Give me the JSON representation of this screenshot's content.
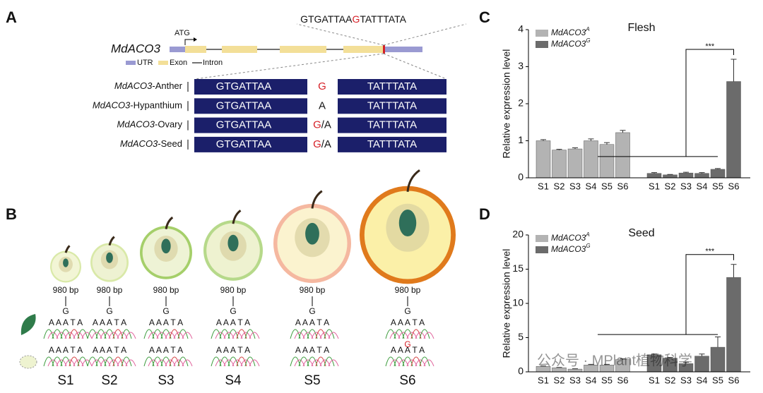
{
  "panels": {
    "labels": [
      "A",
      "B",
      "C",
      "D"
    ],
    "gene": {
      "name": "MdACO3",
      "start": "ATG",
      "sequence": [
        "GTGATTAA",
        "G",
        "TATTTATA"
      ],
      "legend": [
        "UTR",
        "Exon",
        "Intron"
      ]
    },
    "alignment": [
      {
        "label": "MdACO3-Anther",
        "left": "GTGATTAA",
        "allele": "G",
        "right": "TATTTATA"
      },
      {
        "label": "MdACO3-Hypanthium",
        "left": "GTGATTAA",
        "allele": "A",
        "right": "TATTTATA"
      },
      {
        "label": "MdACO3-Ovary",
        "left": "GTGATTAA",
        "allele": "G/A",
        "right": "TATTTATA"
      },
      {
        "label": "MdACO3-Seed",
        "left": "GTGATTAA",
        "allele": "G/A",
        "right": "TATTTATA"
      }
    ],
    "stages": [
      "S1",
      "S2",
      "S3",
      "S4",
      "S5",
      "S6"
    ],
    "amplicon": "980 bp",
    "snp": "G",
    "trace": "A A A T A",
    "watermark": "公众号 · MPlant植物科学"
  },
  "chart_data": [
    {
      "type": "bar",
      "title": "Flesh",
      "y_label": "Relative expression level",
      "categories": [
        "S1",
        "S2",
        "S3",
        "S4",
        "S5",
        "S6"
      ],
      "series": [
        {
          "name": "MdACO3",
          "superscript": "A",
          "color": "#b3b3b3",
          "values": [
            1.0,
            0.75,
            0.78,
            1.0,
            0.9,
            1.22
          ],
          "errors": [
            0.03,
            0.02,
            0.03,
            0.05,
            0.05,
            0.06
          ]
        },
        {
          "name": "MdACO3",
          "superscript": "G",
          "color": "#6b6b6b",
          "values": [
            0.12,
            0.08,
            0.13,
            0.12,
            0.23,
            2.6
          ],
          "errors": [
            0.02,
            0.01,
            0.02,
            0.02,
            0.02,
            0.6
          ]
        }
      ],
      "ylim": [
        0,
        4
      ],
      "yticks": [
        0,
        1,
        2,
        3,
        4
      ],
      "annotation": "***"
    },
    {
      "type": "bar",
      "title": "Seed",
      "y_label": "Relative expression level",
      "categories": [
        "S1",
        "S2",
        "S3",
        "S4",
        "S5",
        "S6"
      ],
      "series": [
        {
          "name": "MdACO3",
          "superscript": "A",
          "color": "#b3b3b3",
          "values": [
            0.8,
            0.6,
            0.4,
            1.0,
            1.0,
            1.8
          ],
          "errors": [
            0.05,
            0.05,
            0.05,
            0.1,
            0.1,
            0.1
          ]
        },
        {
          "name": "MdACO3",
          "superscript": "G",
          "color": "#6b6b6b",
          "values": [
            2.5,
            2.0,
            1.2,
            2.3,
            3.6,
            13.8
          ],
          "errors": [
            0.1,
            0.1,
            0.2,
            0.3,
            1.5,
            1.9
          ]
        }
      ],
      "ylim": [
        0,
        20
      ],
      "yticks": [
        0,
        5,
        10,
        15,
        20
      ],
      "annotation": "***"
    }
  ]
}
